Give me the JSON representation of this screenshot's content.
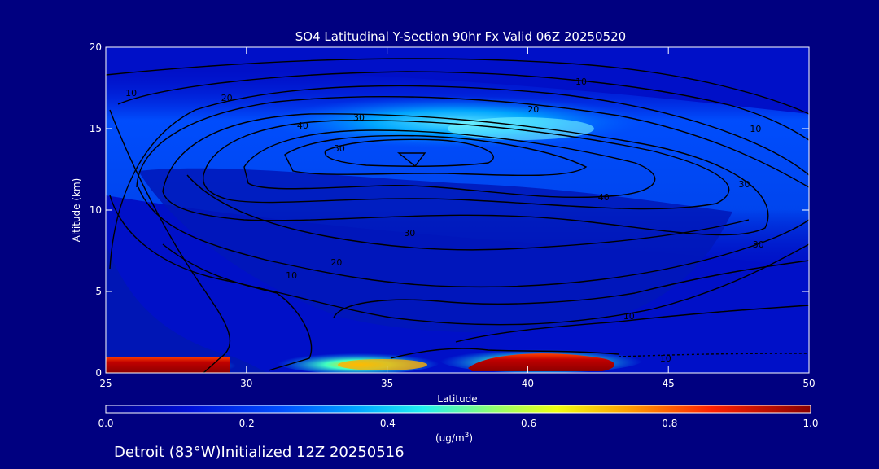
{
  "chart_data": {
    "type": "heatmap",
    "title": "SO4 Latitudinal Y-Section 90hr  Fx Valid 06Z 20250520",
    "xlabel": "Latitude",
    "ylabel": "Altitude (km)",
    "xlim": [
      25,
      50
    ],
    "ylim": [
      0,
      20
    ],
    "x_ticks": [
      "25",
      "30",
      "35",
      "40",
      "45",
      "50"
    ],
    "y_ticks": [
      "0",
      "5",
      "10",
      "15",
      "20"
    ],
    "colorbar": {
      "ticks": [
        "0.0",
        "0.2",
        "0.4",
        "0.6",
        "0.8",
        "1.0"
      ],
      "range": [
        0,
        1
      ],
      "unit_label": "(ug/m",
      "unit_superscript": "3",
      "unit_close": ")"
    },
    "contour_labels": [
      {
        "text": "10",
        "lat": 25.9,
        "alt": 17.2
      },
      {
        "text": "20",
        "lat": 29.3,
        "alt": 16.9
      },
      {
        "text": "30",
        "lat": 34.0,
        "alt": 15.7
      },
      {
        "text": "40",
        "lat": 32.0,
        "alt": 15.2
      },
      {
        "text": "50",
        "lat": 33.3,
        "alt": 13.8
      },
      {
        "text": "10",
        "lat": 41.9,
        "alt": 17.9
      },
      {
        "text": "20",
        "lat": 40.2,
        "alt": 16.2
      },
      {
        "text": "10",
        "lat": 48.1,
        "alt": 15.0
      },
      {
        "text": "30",
        "lat": 47.7,
        "alt": 11.6
      },
      {
        "text": "40",
        "lat": 42.7,
        "alt": 10.8
      },
      {
        "text": "30",
        "lat": 35.8,
        "alt": 8.6
      },
      {
        "text": "20",
        "lat": 33.2,
        "alt": 6.8
      },
      {
        "text": "30",
        "lat": 48.2,
        "alt": 7.9
      },
      {
        "text": "10",
        "lat": 31.6,
        "alt": 6.0
      },
      {
        "text": "10",
        "lat": 43.6,
        "alt": 3.5
      },
      {
        "text": "10",
        "lat": 44.9,
        "alt": 0.9
      }
    ],
    "concentration_features": [
      {
        "name": "surface plume 25-29.8N",
        "lat_range": [
          25,
          29.8
        ],
        "alt_range": [
          0,
          1.0
        ],
        "value": 1.0
      },
      {
        "name": "surface plume 32.5-36.5N",
        "lat_range": [
          32.5,
          36.5
        ],
        "alt_range": [
          0,
          1.2
        ],
        "value": 0.6
      },
      {
        "name": "surface plume 37.8-43.5N",
        "lat_range": [
          37.8,
          43.5
        ],
        "alt_range": [
          0,
          1.3
        ],
        "value": 0.95
      },
      {
        "name": "upper level maximum",
        "lat_range": [
          33,
          43
        ],
        "alt_range": [
          14,
          16
        ],
        "value": 0.45
      },
      {
        "name": "upper layer",
        "lat_range": [
          25,
          50
        ],
        "alt_range": [
          12,
          18.5
        ],
        "value": 0.3
      },
      {
        "name": "mid-troposphere minimum",
        "lat_range": [
          27,
          45
        ],
        "alt_range": [
          2,
          11
        ],
        "value": 0.05
      }
    ]
  },
  "footer": {
    "text": "Detroit (83°W)Initialized 12Z 20250516"
  },
  "colors": {
    "background": "#000080",
    "contour": "#000000",
    "text": "#ffffff"
  }
}
